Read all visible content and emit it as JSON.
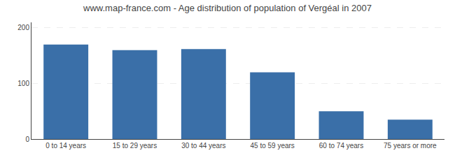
{
  "chart_data": {
    "type": "bar",
    "title": "www.map-france.com - Age distribution of population of Vergéal in 2007",
    "categories": [
      "0 to 14 years",
      "15 to 29 years",
      "30 to 44 years",
      "45 to 59 years",
      "60 to 74 years",
      "75 years or more"
    ],
    "values": [
      170,
      160,
      162,
      120,
      50,
      35
    ],
    "color": "#3a6fa8",
    "ylim": [
      0,
      210
    ],
    "yticks": [
      0,
      100,
      200
    ],
    "grid": true
  }
}
